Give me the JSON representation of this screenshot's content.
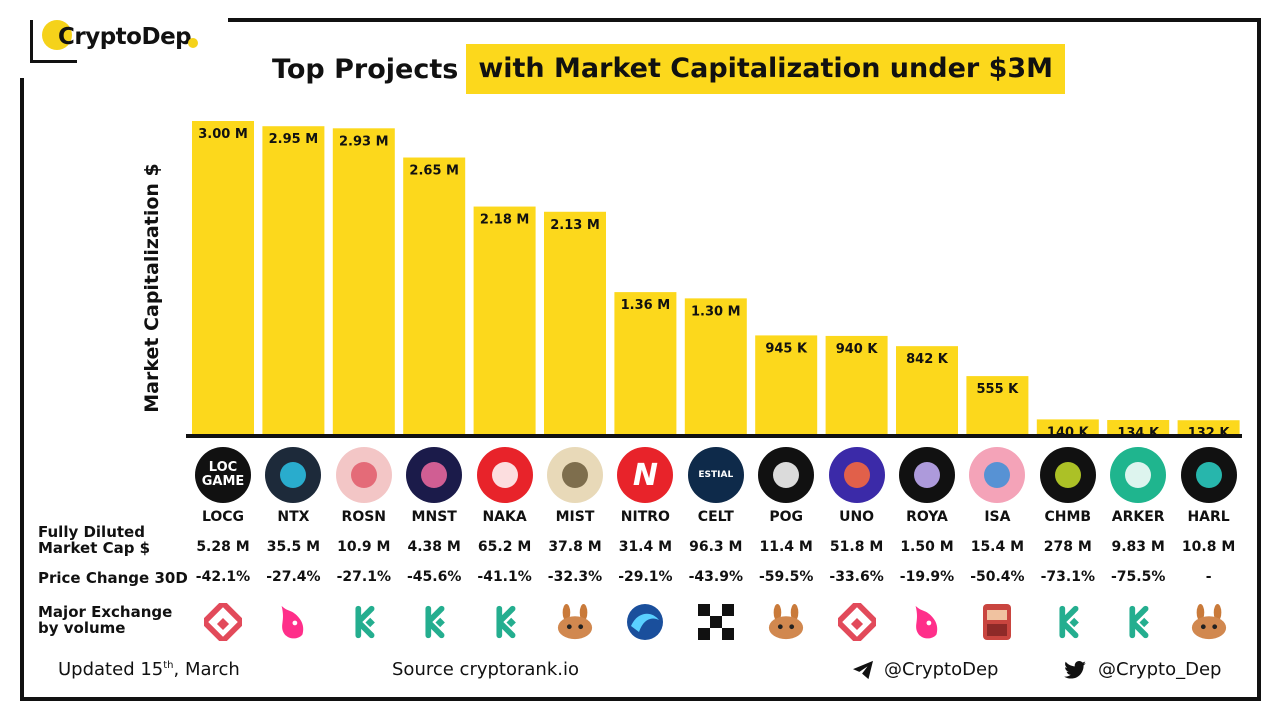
{
  "brand": {
    "name": "CryptoDep",
    "accent": "#fcd81c"
  },
  "title": {
    "part1": "Top Projects",
    "part2": "with Market Capitalization under $3M"
  },
  "chart_data": {
    "type": "bar",
    "ylabel": "Market Capitalization  $",
    "categories": [
      "LOCG",
      "NTX",
      "ROSN",
      "MNST",
      "NAKA",
      "MIST",
      "NITRO",
      "CELT",
      "POG",
      "UNO",
      "ROYA",
      "ISA",
      "CHMB",
      "ARKER",
      "HARL"
    ],
    "values": [
      3000000,
      2950000,
      2930000,
      2650000,
      2180000,
      2130000,
      1360000,
      1300000,
      945000,
      940000,
      842000,
      555000,
      140000,
      134000,
      132000
    ],
    "labels": [
      "3.00 M",
      "2.95 M",
      "2.93 M",
      "2.65 M",
      "2.18 M",
      "2.13 M",
      "1.36 M",
      "1.30 M",
      "945 K",
      "940 K",
      "842 K",
      "555 K",
      "140 K",
      "134 K",
      "132 K"
    ]
  },
  "table": {
    "fdv_label_line1": "Fully Diluted",
    "fdv_label_line2": "Market Cap $",
    "price_label": "Price Change 30D",
    "exchange_label_line1": "Major Exchange",
    "exchange_label_line2": "by volume",
    "fdv": [
      "5.28 M",
      "35.5 M",
      "10.9 M",
      "4.38 M",
      "65.2 M",
      "37.8 M",
      "31.4 M",
      "96.3 M",
      "11.4 M",
      "51.8 M",
      "1.50 M",
      "15.4 M",
      "278 M",
      "9.83 M",
      "10.8 M"
    ],
    "price_change": [
      "-42.1%",
      "-27.4%",
      "-27.1%",
      "-45.6%",
      "-41.1%",
      "-32.3%",
      "-29.1%",
      "-43.9%",
      "-59.5%",
      "-33.6%",
      "-19.9%",
      "-50.4%",
      "-73.1%",
      "-75.5%",
      "-"
    ],
    "exchanges": [
      "gate-icon",
      "uniswap-icon",
      "kucoin-icon",
      "kucoin-icon",
      "kucoin-icon",
      "pancakeswap-icon",
      "quickswap-icon",
      "okx-icon",
      "pancakeswap-icon",
      "gate-icon",
      "uniswap-icon",
      "mexc-icon",
      "kucoin-icon",
      "kucoin-icon",
      "pancakeswap-icon"
    ]
  },
  "project_icons": [
    {
      "text": "LOC GAME",
      "bg": "#111111",
      "fg": "#ffffff"
    },
    {
      "text": "",
      "bg": "#1d2a3a",
      "fg": "#2bc3e8"
    },
    {
      "text": "",
      "bg": "#f3c6c6",
      "fg": "#e05a6a"
    },
    {
      "text": "",
      "bg": "#1b1b4a",
      "fg": "#f06aa0"
    },
    {
      "text": "",
      "bg": "#e8232a",
      "fg": "#ffffff"
    },
    {
      "text": "",
      "bg": "#e8d9b8",
      "fg": "#6b5a3a"
    },
    {
      "text": "N",
      "bg": "#e8232a",
      "fg": "#ffffff"
    },
    {
      "text": "ESTIAL",
      "bg": "#0e2a4a",
      "fg": "#ffffff"
    },
    {
      "text": "",
      "bg": "#111111",
      "fg": "#ffffff"
    },
    {
      "text": "",
      "bg": "#3b2aa8",
      "fg": "#ff6a3a"
    },
    {
      "text": "",
      "bg": "#111111",
      "fg": "#c9b3ff"
    },
    {
      "text": "",
      "bg": "#f4a3b8",
      "fg": "#3b8fd8"
    },
    {
      "text": "",
      "bg": "#111111",
      "fg": "#c8e02a"
    },
    {
      "text": "",
      "bg": "#1fb58e",
      "fg": "#ffffff"
    },
    {
      "text": "",
      "bg": "#111111",
      "fg": "#2bd3c8"
    }
  ],
  "footer": {
    "updated_prefix": "Updated 15",
    "updated_sup": "th",
    "updated_suffix": ", March",
    "source": "Source  cryptorank.io",
    "telegram": "@CryptoDep",
    "twitter": "@Crypto_Dep"
  }
}
